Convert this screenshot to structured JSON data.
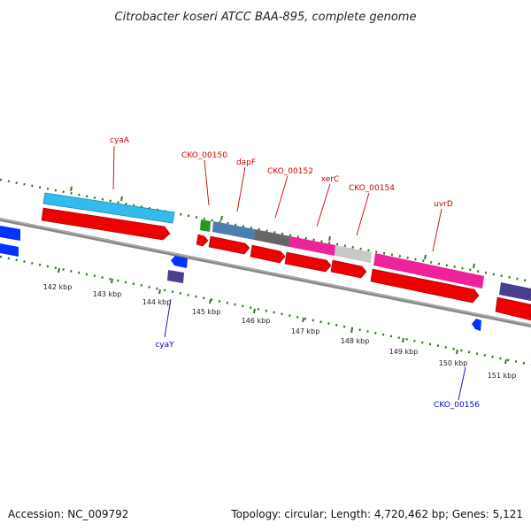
{
  "title": "Citrobacter koseri ATCC BAA-895, complete genome",
  "footer": {
    "accession": "Accession: NC_009792",
    "summary": "Topology: circular; Length: 4,720,462 bp; Genes: 5,121"
  },
  "kbp_labels": [
    "142 kbp",
    "143 kbp",
    "144 kbp",
    "145 kbp",
    "146 kbp",
    "147 kbp",
    "148 kbp",
    "149 kbp",
    "150 kbp",
    "151 kbp"
  ],
  "gene_labels": {
    "cyaA": "cyaA",
    "cko150": "CKO_00150",
    "dapF": "dapF",
    "cko152": "CKO_00152",
    "xerC": "xerC",
    "cko154": "CKO_00154",
    "uvrD": "uvrD",
    "cyaY": "cyaY",
    "cko156": "CKO_00156"
  },
  "colors": {
    "forward_label": "#cc0000",
    "reverse_label": "#0000cc",
    "cds": "#ee0000",
    "gc_ticks": "#2e7d1e",
    "backbone": "#888888"
  }
}
